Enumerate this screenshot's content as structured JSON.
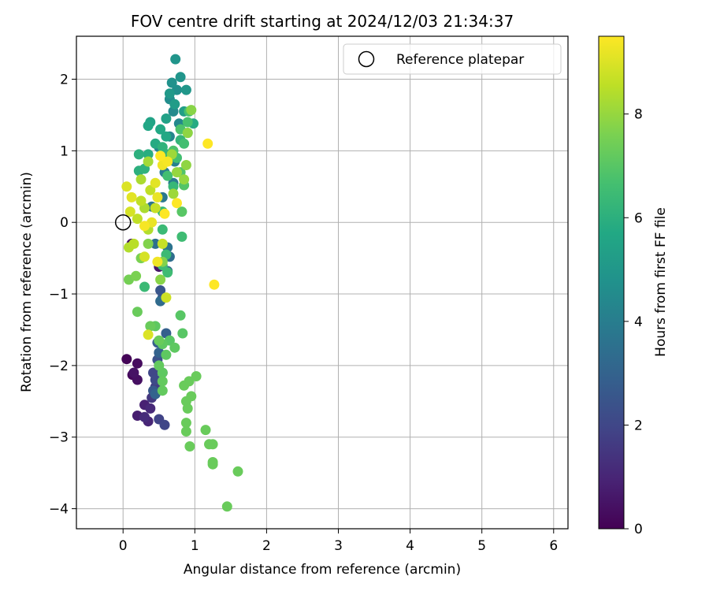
{
  "chart_data": {
    "type": "scatter",
    "title": "FOV centre drift starting at 2024/12/03 21:34:37",
    "xlabel": "Angular distance from reference (arcmin)",
    "ylabel": "Rotation from reference (arcmin)",
    "xlim": [
      -0.65,
      6.2
    ],
    "ylim": [
      -4.28,
      2.6
    ],
    "xticks": [
      0,
      1,
      2,
      3,
      4,
      5,
      6
    ],
    "yticks": [
      -4,
      -3,
      -2,
      -1,
      0,
      1,
      2
    ],
    "grid": true,
    "legend": {
      "placement": "top-right",
      "entries": [
        "Reference platepar"
      ]
    },
    "reference_point": {
      "x": 0,
      "y": 0
    },
    "colorbar": {
      "label": "Hours from first FF file",
      "colormap": "viridis",
      "range": [
        0,
        9.5
      ],
      "ticks": [
        0,
        2,
        4,
        6,
        8
      ]
    },
    "series": [
      {
        "values": [
          [
            0.05,
            -1.91,
            0.1
          ],
          [
            0.13,
            -2.13,
            0.2
          ],
          [
            0.2,
            -1.97,
            0.3
          ],
          [
            0.2,
            -2.2,
            0.4
          ],
          [
            0.15,
            -2.1,
            0.5
          ],
          [
            0.12,
            -0.3,
            0.5
          ],
          [
            0.5,
            -0.62,
            0.6
          ],
          [
            0.2,
            -2.7,
            0.8
          ],
          [
            0.3,
            -2.55,
            0.9
          ],
          [
            0.35,
            -2.78,
            1.0
          ],
          [
            0.38,
            -2.6,
            1.1
          ],
          [
            0.3,
            -2.72,
            1.2
          ],
          [
            0.4,
            -2.45,
            1.5
          ],
          [
            0.45,
            -2.3,
            1.7
          ],
          [
            0.5,
            -2.75,
            1.9
          ],
          [
            0.58,
            -2.83,
            2.0
          ],
          [
            0.42,
            -2.1,
            2.0
          ],
          [
            0.45,
            -2.2,
            2.1
          ],
          [
            0.55,
            -2.1,
            2.2
          ],
          [
            0.48,
            -1.92,
            2.4
          ],
          [
            0.52,
            -0.95,
            2.5
          ],
          [
            0.55,
            -1.05,
            2.6
          ],
          [
            0.42,
            -2.35,
            2.6
          ],
          [
            0.48,
            -1.68,
            2.8
          ],
          [
            0.6,
            -1.55,
            2.9
          ],
          [
            0.45,
            -2.4,
            3.0
          ],
          [
            0.5,
            -1.82,
            3.0
          ],
          [
            0.62,
            -0.68,
            3.2
          ],
          [
            0.52,
            -1.1,
            3.3
          ],
          [
            0.65,
            -0.48,
            3.4
          ],
          [
            0.45,
            -0.3,
            3.5
          ],
          [
            0.62,
            -0.35,
            3.6
          ],
          [
            0.4,
            0.22,
            3.7
          ],
          [
            0.55,
            0.35,
            3.8
          ],
          [
            0.7,
            0.55,
            3.9
          ],
          [
            0.58,
            0.7,
            4.0
          ],
          [
            0.72,
            0.85,
            4.1
          ],
          [
            0.5,
            1.05,
            4.2
          ],
          [
            0.65,
            1.2,
            4.3
          ],
          [
            0.78,
            1.38,
            4.4
          ],
          [
            0.7,
            1.55,
            4.5
          ],
          [
            0.65,
            1.72,
            4.6
          ],
          [
            0.75,
            1.85,
            4.7
          ],
          [
            0.68,
            1.95,
            4.8
          ],
          [
            0.8,
            2.03,
            4.9
          ],
          [
            0.73,
            2.28,
            4.9
          ],
          [
            0.88,
            1.85,
            5.0
          ],
          [
            0.65,
            1.8,
            5.1
          ],
          [
            0.72,
            1.65,
            5.2
          ],
          [
            0.85,
            1.55,
            5.3
          ],
          [
            0.6,
            1.45,
            5.4
          ],
          [
            0.38,
            1.4,
            5.5
          ],
          [
            0.35,
            1.35,
            5.6
          ],
          [
            0.52,
            1.3,
            5.7
          ],
          [
            0.6,
            1.2,
            5.7
          ],
          [
            0.98,
            1.38,
            5.8
          ],
          [
            0.45,
            1.1,
            5.8
          ],
          [
            0.35,
            0.95,
            5.9
          ],
          [
            0.22,
            0.95,
            6.0
          ],
          [
            0.22,
            0.72,
            6.0
          ],
          [
            0.3,
            0.75,
            6.1
          ],
          [
            0.55,
            1.05,
            6.1
          ],
          [
            0.62,
            0.95,
            6.2
          ],
          [
            0.8,
            1.15,
            6.2
          ],
          [
            0.9,
            1.25,
            6.3
          ],
          [
            0.7,
            0.5,
            6.3
          ],
          [
            0.55,
            0.15,
            6.3
          ],
          [
            0.55,
            -0.1,
            6.4
          ],
          [
            0.6,
            -0.45,
            6.4
          ],
          [
            0.3,
            -0.9,
            6.4
          ],
          [
            0.55,
            -0.6,
            6.5
          ],
          [
            0.62,
            -0.7,
            6.5
          ],
          [
            0.82,
            -0.2,
            6.5
          ],
          [
            0.62,
            0.65,
            6.6
          ],
          [
            0.75,
            0.9,
            6.6
          ],
          [
            0.85,
            1.1,
            6.6
          ],
          [
            0.92,
            1.55,
            6.7
          ],
          [
            0.9,
            1.4,
            6.7
          ],
          [
            0.8,
            1.3,
            6.8
          ],
          [
            0.7,
            1.0,
            6.8
          ],
          [
            0.8,
            0.7,
            6.9
          ],
          [
            0.85,
            0.52,
            6.9
          ],
          [
            0.82,
            0.15,
            7.0
          ],
          [
            0.8,
            -1.3,
            7.0
          ],
          [
            0.83,
            -1.55,
            7.0
          ],
          [
            0.65,
            -1.65,
            7.0
          ],
          [
            0.72,
            -1.75,
            7.1
          ],
          [
            0.55,
            -1.7,
            7.1
          ],
          [
            0.6,
            -1.85,
            7.1
          ],
          [
            0.45,
            -1.45,
            7.1
          ],
          [
            0.55,
            -2.1,
            7.1
          ],
          [
            0.55,
            -2.22,
            7.2
          ],
          [
            0.55,
            -2.35,
            7.2
          ],
          [
            0.5,
            -2.0,
            7.2
          ],
          [
            0.2,
            -1.25,
            7.3
          ],
          [
            0.38,
            -1.45,
            7.3
          ],
          [
            0.5,
            -1.65,
            7.3
          ],
          [
            0.85,
            -2.28,
            7.3
          ],
          [
            0.92,
            -2.22,
            7.3
          ],
          [
            0.95,
            -2.43,
            7.3
          ],
          [
            1.02,
            -2.15,
            7.3
          ],
          [
            0.88,
            -2.5,
            7.3
          ],
          [
            0.9,
            -2.6,
            7.3
          ],
          [
            0.88,
            -2.8,
            7.3
          ],
          [
            0.88,
            -2.92,
            7.3
          ],
          [
            0.93,
            -3.13,
            7.3
          ],
          [
            1.15,
            -2.9,
            7.3
          ],
          [
            1.2,
            -3.1,
            7.3
          ],
          [
            1.25,
            -3.1,
            7.3
          ],
          [
            1.25,
            -3.35,
            7.3
          ],
          [
            1.25,
            -3.38,
            7.3
          ],
          [
            1.6,
            -3.48,
            7.3
          ],
          [
            1.45,
            -3.97,
            7.3
          ],
          [
            0.08,
            -0.8,
            7.5
          ],
          [
            0.18,
            -0.75,
            7.6
          ],
          [
            0.25,
            -0.5,
            7.6
          ],
          [
            0.35,
            -0.3,
            7.7
          ],
          [
            0.55,
            -0.55,
            7.7
          ],
          [
            0.52,
            -0.8,
            7.8
          ],
          [
            0.95,
            1.57,
            7.8
          ],
          [
            0.9,
            1.25,
            7.9
          ],
          [
            0.88,
            0.8,
            7.9
          ],
          [
            0.85,
            0.6,
            8.0
          ],
          [
            0.75,
            0.7,
            8.0
          ],
          [
            0.68,
            0.95,
            8.1
          ],
          [
            0.7,
            0.4,
            8.1
          ],
          [
            0.35,
            0.85,
            8.2
          ],
          [
            0.25,
            0.6,
            8.3
          ],
          [
            0.3,
            0.2,
            8.3
          ],
          [
            0.35,
            -0.1,
            8.4
          ],
          [
            0.08,
            -0.35,
            8.4
          ],
          [
            0.15,
            -0.3,
            8.5
          ],
          [
            0.2,
            0.05,
            8.6
          ],
          [
            0.25,
            0.3,
            8.6
          ],
          [
            0.38,
            0.45,
            8.6
          ],
          [
            0.45,
            0.2,
            8.7
          ],
          [
            0.55,
            -0.3,
            8.7
          ],
          [
            0.6,
            -1.05,
            8.8
          ],
          [
            0.3,
            -0.48,
            8.9
          ],
          [
            0.1,
            0.15,
            8.9
          ],
          [
            0.05,
            0.5,
            9.0
          ],
          [
            0.35,
            -1.57,
            9.0
          ],
          [
            0.12,
            0.35,
            9.1
          ],
          [
            0.45,
            0.55,
            9.1
          ],
          [
            0.48,
            0.35,
            9.2
          ],
          [
            0.4,
            0.0,
            9.2
          ],
          [
            0.48,
            -0.55,
            9.3
          ],
          [
            0.55,
            0.8,
            9.3
          ],
          [
            0.62,
            0.85,
            9.4
          ],
          [
            0.52,
            0.93,
            9.5
          ],
          [
            1.18,
            1.1,
            9.5
          ],
          [
            1.27,
            -0.87,
            9.5
          ],
          [
            0.75,
            0.27,
            9.5
          ],
          [
            0.58,
            0.12,
            9.5
          ],
          [
            0.3,
            -0.05,
            9.4
          ]
        ]
      }
    ]
  }
}
